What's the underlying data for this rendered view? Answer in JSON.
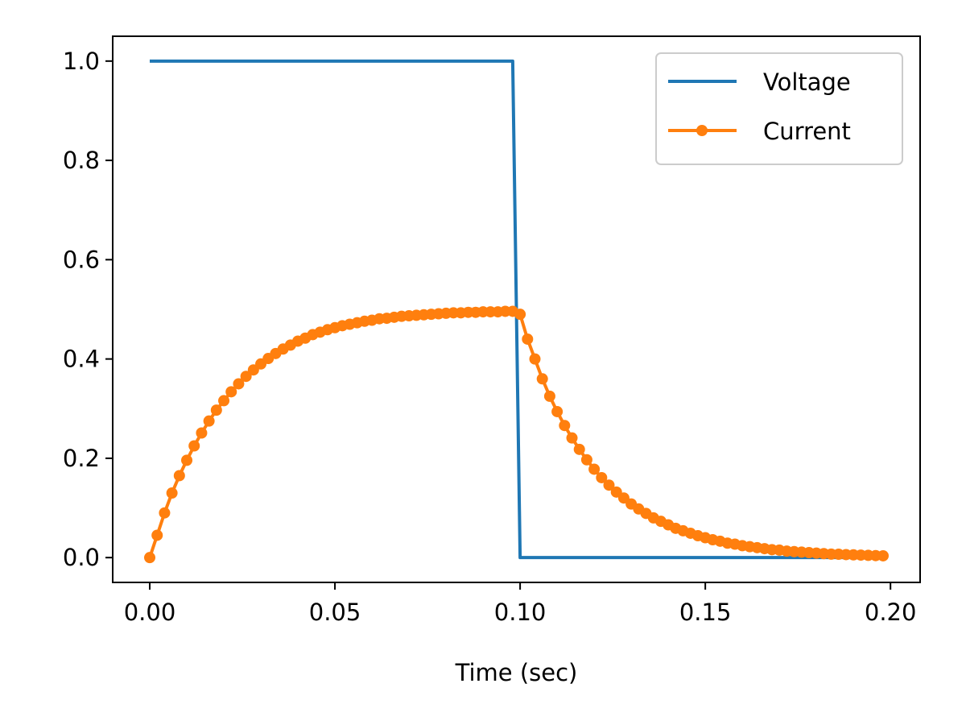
{
  "chart_data": {
    "type": "line",
    "title": "",
    "xlabel": "Time (sec)",
    "ylabel": "",
    "xlim": [
      -0.01,
      0.208
    ],
    "ylim": [
      -0.05,
      1.05
    ],
    "xticks": [
      0.0,
      0.05,
      0.1,
      0.15,
      0.2
    ],
    "xtick_labels": [
      "0.00",
      "0.05",
      "0.10",
      "0.15",
      "0.20"
    ],
    "yticks": [
      0.0,
      0.2,
      0.4,
      0.6,
      0.8,
      1.0
    ],
    "ytick_labels": [
      "0.0",
      "0.2",
      "0.4",
      "0.6",
      "0.8",
      "1.0"
    ],
    "grid": false,
    "legend": {
      "placement": "top-right",
      "entries": [
        "Voltage",
        "Current"
      ]
    },
    "series": [
      {
        "name": "Voltage",
        "color": "#1f77b4",
        "marker": "none",
        "x": [
          0.0,
          0.098,
          0.1,
          0.198
        ],
        "y": [
          1.0,
          1.0,
          0.0,
          0.0
        ]
      },
      {
        "name": "Current",
        "color": "#ff7f0e",
        "marker": "circle",
        "x": [
          0.0,
          0.002,
          0.004,
          0.006,
          0.008,
          0.01,
          0.012,
          0.014,
          0.016,
          0.018,
          0.02,
          0.022,
          0.024,
          0.026,
          0.028,
          0.03,
          0.032,
          0.034,
          0.036,
          0.038,
          0.04,
          0.042,
          0.044,
          0.046,
          0.048,
          0.05,
          0.052,
          0.054,
          0.056,
          0.058,
          0.06,
          0.062,
          0.064,
          0.066,
          0.068,
          0.07,
          0.072,
          0.074,
          0.076,
          0.078,
          0.08,
          0.082,
          0.084,
          0.086,
          0.088,
          0.09,
          0.092,
          0.094,
          0.096,
          0.098,
          0.1,
          0.102,
          0.104,
          0.106,
          0.108,
          0.11,
          0.112,
          0.114,
          0.116,
          0.118,
          0.12,
          0.122,
          0.124,
          0.126,
          0.128,
          0.13,
          0.132,
          0.134,
          0.136,
          0.138,
          0.14,
          0.142,
          0.144,
          0.146,
          0.148,
          0.15,
          0.152,
          0.154,
          0.156,
          0.158,
          0.16,
          0.162,
          0.164,
          0.166,
          0.168,
          0.17,
          0.172,
          0.174,
          0.176,
          0.178,
          0.18,
          0.182,
          0.184,
          0.186,
          0.188,
          0.19,
          0.192,
          0.194,
          0.196,
          0.198
        ],
        "y": [
          0.0,
          0.045,
          0.09,
          0.13,
          0.165,
          0.196,
          0.225,
          0.251,
          0.275,
          0.297,
          0.316,
          0.334,
          0.35,
          0.365,
          0.378,
          0.39,
          0.401,
          0.411,
          0.42,
          0.428,
          0.436,
          0.442,
          0.449,
          0.454,
          0.459,
          0.463,
          0.467,
          0.47,
          0.473,
          0.476,
          0.478,
          0.481,
          0.482,
          0.484,
          0.486,
          0.487,
          0.488,
          0.489,
          0.49,
          0.491,
          0.492,
          0.493,
          0.493,
          0.494,
          0.494,
          0.495,
          0.495,
          0.495,
          0.496,
          0.496,
          0.49,
          0.44,
          0.4,
          0.36,
          0.325,
          0.294,
          0.266,
          0.241,
          0.218,
          0.197,
          0.178,
          0.161,
          0.146,
          0.132,
          0.12,
          0.108,
          0.098,
          0.089,
          0.08,
          0.073,
          0.066,
          0.059,
          0.054,
          0.049,
          0.044,
          0.04,
          0.036,
          0.033,
          0.029,
          0.027,
          0.024,
          0.022,
          0.02,
          0.018,
          0.016,
          0.015,
          0.013,
          0.012,
          0.011,
          0.01,
          0.009,
          0.008,
          0.007,
          0.0067,
          0.006,
          0.0055,
          0.005,
          0.0045,
          0.004,
          0.0036
        ]
      }
    ]
  }
}
